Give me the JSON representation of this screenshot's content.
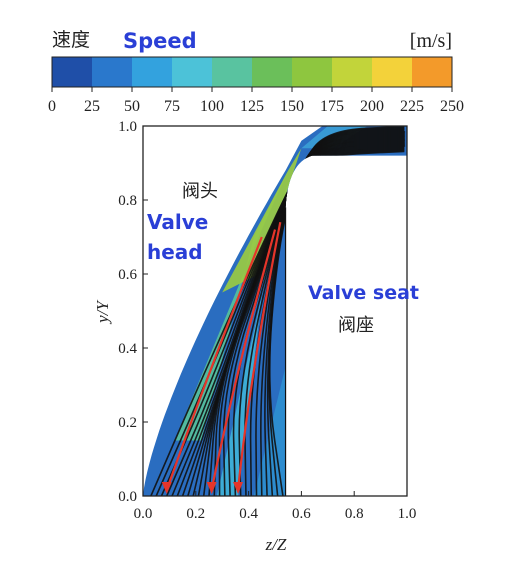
{
  "chart_data": {
    "type": "heatmap",
    "colorbar": {
      "label_cn": "速度",
      "label_en": "Speed",
      "unit": "[m/s]",
      "ticks": [
        "0",
        "25",
        "50",
        "75",
        "100",
        "125",
        "150",
        "175",
        "200",
        "225",
        "250"
      ],
      "range": [
        0,
        250
      ],
      "colors": [
        "#1f4fa8",
        "#2a78cc",
        "#33a2de",
        "#4cc2d8",
        "#59c3a0",
        "#6bbf5a",
        "#8ec63f",
        "#c2d43a",
        "#f3d23a",
        "#f39a2a",
        "#e8452a"
      ]
    },
    "xlabel": "z/Z",
    "ylabel": "y/Y",
    "xlim": [
      0,
      1
    ],
    "ylim": [
      0,
      1
    ],
    "x_ticks": [
      "0.0",
      "0.2",
      "0.4",
      "0.6",
      "0.8",
      "1.0"
    ],
    "y_ticks": [
      "0.0",
      "0.2",
      "0.4",
      "0.6",
      "0.8",
      "1.0"
    ],
    "annotations": {
      "valve_head_cn": "阀头",
      "valve_head_en_1": "Valve",
      "valve_head_en_2": "head",
      "valve_seat_en": "Valve seat",
      "valve_seat_cn": "阀座"
    },
    "arrows": [
      {
        "x": 0.09,
        "y": 0.0
      },
      {
        "x": 0.26,
        "y": 0.0
      },
      {
        "x": 0.36,
        "y": 0.0
      }
    ]
  }
}
